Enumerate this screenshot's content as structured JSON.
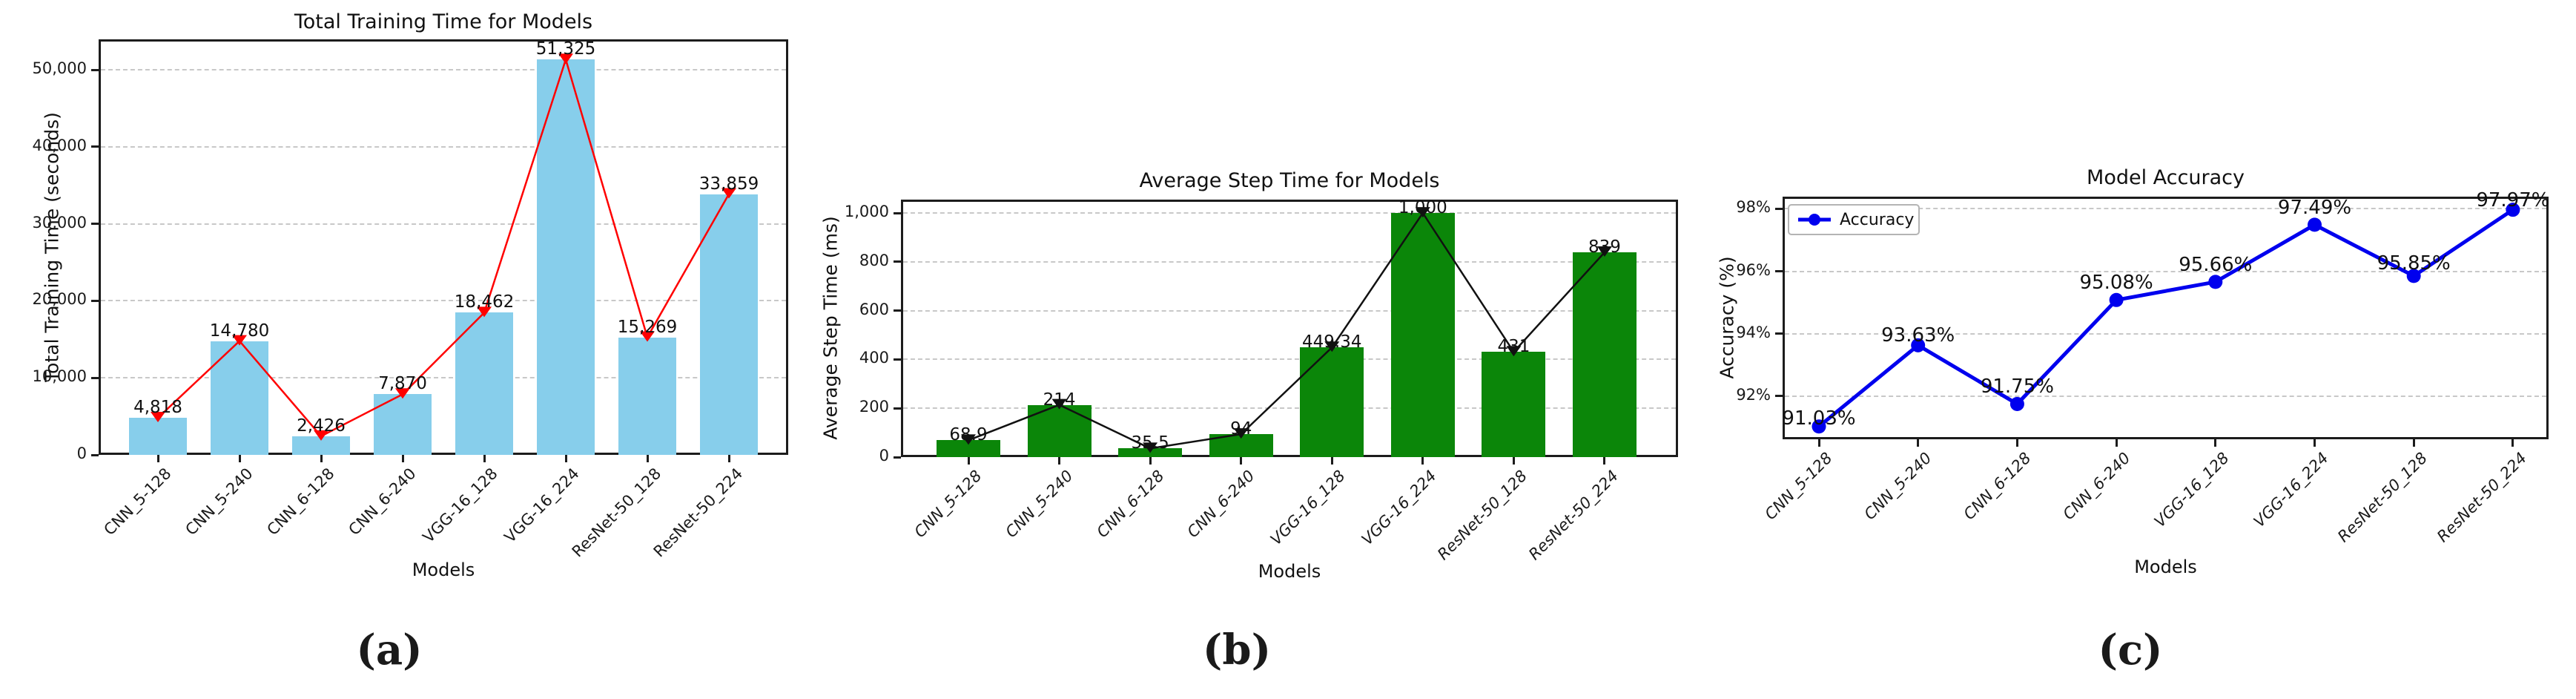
{
  "figure": {
    "captions": [
      "(a)",
      "(b)",
      "(c)"
    ]
  },
  "chart_data": [
    {
      "type": "bar+line",
      "title": "Total Training Time for Models",
      "xlabel": "Models",
      "ylabel": "Total Training Time (seconds)",
      "caption": "(a)",
      "categories": [
        "CNN_5-128",
        "CNN_5-240",
        "CNN_6-128",
        "CNN_6-240",
        "VGG-16_128",
        "VGG-16_224",
        "ResNet-50_128",
        "ResNet-50_224"
      ],
      "values": [
        4818,
        14780,
        2426,
        7870,
        18462,
        51325,
        15269,
        33859
      ],
      "value_labels": [
        "4,818",
        "14,780",
        "2,426",
        "7,870",
        "18,462",
        "51,325",
        "15,269",
        "33,859"
      ],
      "ytick_values": [
        0,
        10000,
        20000,
        30000,
        40000,
        50000
      ],
      "ytick_labels": [
        "0",
        "10,000",
        "20,000",
        "30,000",
        "40,000",
        "50,000"
      ],
      "ylim": [
        0,
        53950
      ],
      "bar_color": "#87CEEB",
      "line_color": "#FF0000",
      "marker": "triangle-down",
      "grid": "dashed-horizontal"
    },
    {
      "type": "bar+line",
      "title": "Average Step Time for Models",
      "xlabel": "Models",
      "ylabel": "Average Step Time (ms)",
      "caption": "(b)",
      "categories": [
        "CNN_5-128",
        "CNN_5-240",
        "CNN_6-128",
        "CNN_6-240",
        "VGG-16_128",
        "VGG-16_224",
        "ResNet-50_128",
        "ResNet-50_224"
      ],
      "values": [
        68.9,
        214,
        35.5,
        94,
        449.34,
        1000,
        431,
        839
      ],
      "value_labels": [
        "68.9",
        "214",
        "35.5",
        "94",
        "449.34",
        "1,000",
        "431",
        "839"
      ],
      "ytick_values": [
        0,
        200,
        400,
        600,
        800,
        1000
      ],
      "ytick_labels": [
        "0",
        "200",
        "400",
        "600",
        "800",
        "1,000"
      ],
      "ylim": [
        0,
        1055
      ],
      "bar_color": "#0B8609",
      "line_color": "#111111",
      "marker": "triangle-down",
      "grid": "dashed-horizontal"
    },
    {
      "type": "line",
      "title": "Model Accuracy",
      "xlabel": "Models",
      "ylabel": "Accuracy (%)",
      "caption": "(c)",
      "categories": [
        "CNN_5-128",
        "CNN_5-240",
        "CNN_6-128",
        "CNN_6-240",
        "VGG-16_128",
        "VGG-16_224",
        "ResNet-50_128",
        "ResNet-50_224"
      ],
      "values": [
        91.03,
        93.63,
        91.75,
        95.08,
        95.66,
        97.49,
        95.85,
        97.97
      ],
      "value_labels": [
        "91.03%",
        "93.63%",
        "91.75%",
        "95.08%",
        "95.66%",
        "97.49%",
        "95.85%",
        "97.97%"
      ],
      "ytick_values": [
        92,
        94,
        96,
        98
      ],
      "ytick_labels": [
        "92%",
        "94%",
        "96%",
        "98%"
      ],
      "ylim": [
        90.62,
        98.39
      ],
      "line_color": "#0000EE",
      "marker": "circle",
      "grid": "dashed-horizontal",
      "legend": {
        "label": "Accuracy",
        "position": "upper-left"
      }
    }
  ]
}
